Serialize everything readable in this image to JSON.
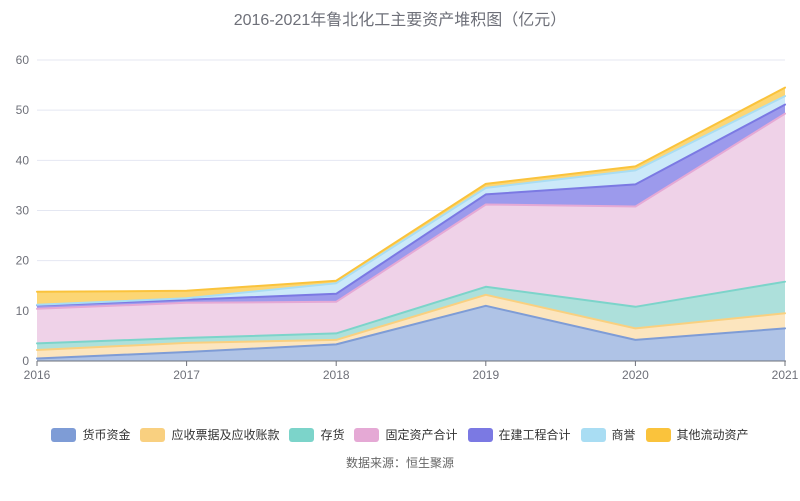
{
  "title": "2016-2021年鲁北化工主要资产堆积图（亿元）",
  "source": "数据来源：恒生聚源",
  "chart_data": {
    "type": "area",
    "stacked": true,
    "title": "2016-2021年鲁北化工主要资产堆积图（亿元）",
    "categories": [
      "2016",
      "2017",
      "2018",
      "2019",
      "2020",
      "2021"
    ],
    "ylim": [
      0,
      60
    ],
    "yticks": [
      0,
      10,
      20,
      30,
      40,
      50,
      60
    ],
    "grid": true,
    "legend_position": "bottom",
    "axis_color": "#6e7079",
    "grid_color": "#e4e7f2",
    "series": [
      {
        "name": "货币资金",
        "color": "#7e9cd6",
        "fill": "#afc3e6",
        "values": [
          0.5,
          1.8,
          3.3,
          11.0,
          4.2,
          6.5
        ]
      },
      {
        "name": "应收票据及应收账款",
        "color": "#f9d080",
        "fill": "#fce5be",
        "values": [
          1.7,
          1.8,
          0.9,
          2.2,
          2.3,
          3.0
        ]
      },
      {
        "name": "存货",
        "color": "#7cd4ca",
        "fill": "#ade0db",
        "values": [
          1.3,
          1.0,
          1.3,
          1.6,
          4.3,
          6.3
        ]
      },
      {
        "name": "固定资产合计",
        "color": "#e5a9d5",
        "fill": "#efd2e8",
        "values": [
          6.9,
          7.0,
          6.3,
          16.4,
          20.0,
          33.5
        ]
      },
      {
        "name": "在建工程合计",
        "color": "#7b79e3",
        "fill": "#9c9aec",
        "values": [
          0.7,
          0.6,
          1.6,
          2.0,
          4.4,
          1.8
        ]
      },
      {
        "name": "商誉",
        "color": "#a9ddf3",
        "fill": "#cbe9f9",
        "values": [
          0.1,
          0.3,
          2.1,
          1.3,
          2.8,
          1.7
        ]
      },
      {
        "name": "其他流动资产",
        "color": "#fac33c",
        "fill": "#fcd674",
        "values": [
          2.6,
          1.5,
          0.5,
          0.8,
          0.8,
          1.7
        ]
      }
    ]
  }
}
